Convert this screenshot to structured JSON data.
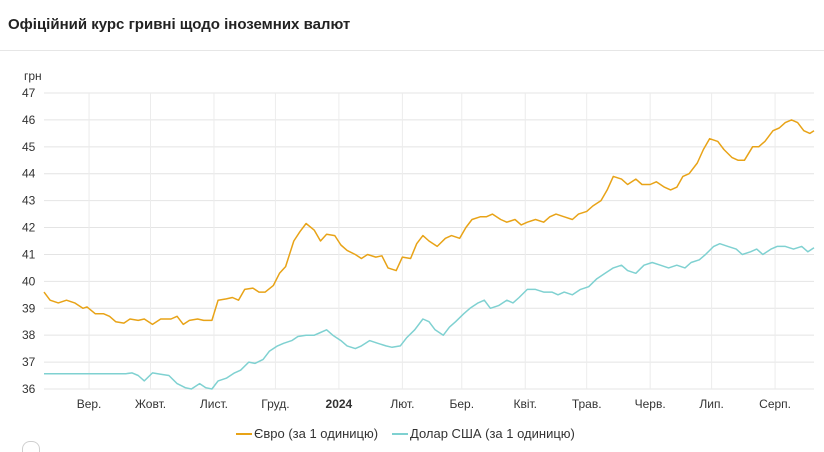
{
  "page": {
    "title": "Офіційний курс гривні щодо іноземних валют"
  },
  "chart_data": {
    "type": "line",
    "unit_label": "грн",
    "ylim": [
      36,
      47
    ],
    "y_ticks": [
      "36",
      "37",
      "38",
      "39",
      "40",
      "41",
      "42",
      "43",
      "44",
      "45",
      "46",
      "47"
    ],
    "x_range": [
      "2023-08-24",
      "2024-09-03"
    ],
    "x_ticks": [
      {
        "date": "2023-09-15",
        "label": "Вер.",
        "bold": false
      },
      {
        "date": "2023-10-15",
        "label": "Жовт.",
        "bold": false
      },
      {
        "date": "2023-11-15",
        "label": "Лист.",
        "bold": false
      },
      {
        "date": "2023-12-15",
        "label": "Груд.",
        "bold": false
      },
      {
        "date": "2024-01-15",
        "label": "2024",
        "bold": true
      },
      {
        "date": "2024-02-15",
        "label": "Лют.",
        "bold": false
      },
      {
        "date": "2024-03-15",
        "label": "Бер.",
        "bold": false
      },
      {
        "date": "2024-04-15",
        "label": "Квіт.",
        "bold": false
      },
      {
        "date": "2024-05-15",
        "label": "Трав.",
        "bold": false
      },
      {
        "date": "2024-06-15",
        "label": "Черв.",
        "bold": false
      },
      {
        "date": "2024-07-15",
        "label": "Лип.",
        "bold": false
      },
      {
        "date": "2024-08-15",
        "label": "Серп.",
        "bold": false
      }
    ],
    "grid": true,
    "legend_position": "bottom-center",
    "series": [
      {
        "name": "Євро (за 1 одиницю)",
        "color": "#e8a317",
        "points": [
          [
            "2023-08-24",
            39.6
          ],
          [
            "2023-08-27",
            39.3
          ],
          [
            "2023-08-31",
            39.2
          ],
          [
            "2023-09-04",
            39.3
          ],
          [
            "2023-09-08",
            39.2
          ],
          [
            "2023-09-12",
            39.0
          ],
          [
            "2023-09-14",
            39.05
          ],
          [
            "2023-09-18",
            38.8
          ],
          [
            "2023-09-22",
            38.8
          ],
          [
            "2023-09-25",
            38.7
          ],
          [
            "2023-09-28",
            38.5
          ],
          [
            "2023-10-02",
            38.45
          ],
          [
            "2023-10-05",
            38.6
          ],
          [
            "2023-10-09",
            38.55
          ],
          [
            "2023-10-12",
            38.6
          ],
          [
            "2023-10-16",
            38.4
          ],
          [
            "2023-10-20",
            38.6
          ],
          [
            "2023-10-25",
            38.6
          ],
          [
            "2023-10-28",
            38.7
          ],
          [
            "2023-10-31",
            38.4
          ],
          [
            "2023-11-03",
            38.55
          ],
          [
            "2023-11-07",
            38.6
          ],
          [
            "2023-11-10",
            38.55
          ],
          [
            "2023-11-14",
            38.55
          ],
          [
            "2023-11-17",
            39.3
          ],
          [
            "2023-11-21",
            39.35
          ],
          [
            "2023-11-24",
            39.4
          ],
          [
            "2023-11-27",
            39.3
          ],
          [
            "2023-11-30",
            39.7
          ],
          [
            "2023-12-04",
            39.75
          ],
          [
            "2023-12-07",
            39.6
          ],
          [
            "2023-12-10",
            39.6
          ],
          [
            "2023-12-14",
            39.85
          ],
          [
            "2023-12-17",
            40.3
          ],
          [
            "2023-12-20",
            40.55
          ],
          [
            "2023-12-24",
            41.5
          ],
          [
            "2023-12-27",
            41.85
          ],
          [
            "2023-12-30",
            42.15
          ],
          [
            "2024-01-03",
            41.9
          ],
          [
            "2024-01-06",
            41.5
          ],
          [
            "2024-01-09",
            41.75
          ],
          [
            "2024-01-13",
            41.7
          ],
          [
            "2024-01-16",
            41.35
          ],
          [
            "2024-01-19",
            41.15
          ],
          [
            "2024-01-23",
            41.0
          ],
          [
            "2024-01-26",
            40.85
          ],
          [
            "2024-01-29",
            41.0
          ],
          [
            "2024-02-02",
            40.9
          ],
          [
            "2024-02-05",
            40.95
          ],
          [
            "2024-02-08",
            40.5
          ],
          [
            "2024-02-12",
            40.4
          ],
          [
            "2024-02-15",
            40.9
          ],
          [
            "2024-02-19",
            40.85
          ],
          [
            "2024-02-22",
            41.4
          ],
          [
            "2024-02-25",
            41.7
          ],
          [
            "2024-02-28",
            41.5
          ],
          [
            "2024-03-03",
            41.3
          ],
          [
            "2024-03-07",
            41.6
          ],
          [
            "2024-03-10",
            41.7
          ],
          [
            "2024-03-14",
            41.6
          ],
          [
            "2024-03-17",
            42.0
          ],
          [
            "2024-03-20",
            42.3
          ],
          [
            "2024-03-24",
            42.4
          ],
          [
            "2024-03-27",
            42.4
          ],
          [
            "2024-03-30",
            42.5
          ],
          [
            "2024-04-03",
            42.3
          ],
          [
            "2024-04-06",
            42.2
          ],
          [
            "2024-04-10",
            42.3
          ],
          [
            "2024-04-13",
            42.1
          ],
          [
            "2024-04-16",
            42.2
          ],
          [
            "2024-04-20",
            42.3
          ],
          [
            "2024-04-24",
            42.2
          ],
          [
            "2024-04-27",
            42.4
          ],
          [
            "2024-04-30",
            42.5
          ],
          [
            "2024-05-04",
            42.4
          ],
          [
            "2024-05-08",
            42.3
          ],
          [
            "2024-05-11",
            42.5
          ],
          [
            "2024-05-15",
            42.6
          ],
          [
            "2024-05-18",
            42.8
          ],
          [
            "2024-05-22",
            43.0
          ],
          [
            "2024-05-25",
            43.4
          ],
          [
            "2024-05-28",
            43.9
          ],
          [
            "2024-06-01",
            43.8
          ],
          [
            "2024-06-04",
            43.6
          ],
          [
            "2024-06-08",
            43.8
          ],
          [
            "2024-06-11",
            43.6
          ],
          [
            "2024-06-15",
            43.6
          ],
          [
            "2024-06-18",
            43.7
          ],
          [
            "2024-06-22",
            43.5
          ],
          [
            "2024-06-25",
            43.4
          ],
          [
            "2024-06-28",
            43.5
          ],
          [
            "2024-07-01",
            43.9
          ],
          [
            "2024-07-04",
            44.0
          ],
          [
            "2024-07-08",
            44.4
          ],
          [
            "2024-07-11",
            44.9
          ],
          [
            "2024-07-14",
            45.3
          ],
          [
            "2024-07-18",
            45.2
          ],
          [
            "2024-07-21",
            44.9
          ],
          [
            "2024-07-25",
            44.6
          ],
          [
            "2024-07-28",
            44.5
          ],
          [
            "2024-07-31",
            44.5
          ],
          [
            "2024-08-04",
            45.0
          ],
          [
            "2024-08-07",
            45.0
          ],
          [
            "2024-08-10",
            45.2
          ],
          [
            "2024-08-14",
            45.6
          ],
          [
            "2024-08-17",
            45.7
          ],
          [
            "2024-08-20",
            45.9
          ],
          [
            "2024-08-23",
            46.0
          ],
          [
            "2024-08-26",
            45.9
          ],
          [
            "2024-08-29",
            45.6
          ],
          [
            "2024-09-01",
            45.5
          ],
          [
            "2024-09-03",
            45.6
          ]
        ]
      },
      {
        "name": "Долар США (за 1 одиницю)",
        "color": "#7fd1d1",
        "points": [
          [
            "2023-08-24",
            36.57
          ],
          [
            "2023-09-10",
            36.57
          ],
          [
            "2023-09-25",
            36.57
          ],
          [
            "2023-10-03",
            36.57
          ],
          [
            "2023-10-06",
            36.6
          ],
          [
            "2023-10-09",
            36.5
          ],
          [
            "2023-10-12",
            36.3
          ],
          [
            "2023-10-16",
            36.6
          ],
          [
            "2023-10-20",
            36.55
          ],
          [
            "2023-10-24",
            36.5
          ],
          [
            "2023-10-28",
            36.2
          ],
          [
            "2023-11-01",
            36.05
          ],
          [
            "2023-11-04",
            36.0
          ],
          [
            "2023-11-08",
            36.2
          ],
          [
            "2023-11-11",
            36.05
          ],
          [
            "2023-11-14",
            36.0
          ],
          [
            "2023-11-17",
            36.3
          ],
          [
            "2023-11-21",
            36.4
          ],
          [
            "2023-11-25",
            36.6
          ],
          [
            "2023-11-28",
            36.7
          ],
          [
            "2023-12-02",
            37.0
          ],
          [
            "2023-12-05",
            36.95
          ],
          [
            "2023-12-09",
            37.1
          ],
          [
            "2023-12-12",
            37.4
          ],
          [
            "2023-12-16",
            37.6
          ],
          [
            "2023-12-19",
            37.7
          ],
          [
            "2023-12-23",
            37.8
          ],
          [
            "2023-12-26",
            37.95
          ],
          [
            "2023-12-30",
            38.0
          ],
          [
            "2024-01-03",
            38.0
          ],
          [
            "2024-01-06",
            38.1
          ],
          [
            "2024-01-09",
            38.2
          ],
          [
            "2024-01-12",
            38.0
          ],
          [
            "2024-01-16",
            37.8
          ],
          [
            "2024-01-19",
            37.6
          ],
          [
            "2024-01-23",
            37.5
          ],
          [
            "2024-01-26",
            37.6
          ],
          [
            "2024-01-30",
            37.8
          ],
          [
            "2024-02-03",
            37.7
          ],
          [
            "2024-02-07",
            37.6
          ],
          [
            "2024-02-10",
            37.55
          ],
          [
            "2024-02-14",
            37.6
          ],
          [
            "2024-02-17",
            37.9
          ],
          [
            "2024-02-21",
            38.2
          ],
          [
            "2024-02-25",
            38.6
          ],
          [
            "2024-02-28",
            38.5
          ],
          [
            "2024-03-02",
            38.2
          ],
          [
            "2024-03-06",
            38.0
          ],
          [
            "2024-03-09",
            38.3
          ],
          [
            "2024-03-12",
            38.5
          ],
          [
            "2024-03-16",
            38.8
          ],
          [
            "2024-03-19",
            39.0
          ],
          [
            "2024-03-23",
            39.2
          ],
          [
            "2024-03-26",
            39.3
          ],
          [
            "2024-03-29",
            39.0
          ],
          [
            "2024-04-02",
            39.1
          ],
          [
            "2024-04-06",
            39.3
          ],
          [
            "2024-04-09",
            39.2
          ],
          [
            "2024-04-12",
            39.4
          ],
          [
            "2024-04-16",
            39.7
          ],
          [
            "2024-04-20",
            39.7
          ],
          [
            "2024-04-24",
            39.6
          ],
          [
            "2024-04-28",
            39.6
          ],
          [
            "2024-05-01",
            39.5
          ],
          [
            "2024-05-04",
            39.6
          ],
          [
            "2024-05-08",
            39.5
          ],
          [
            "2024-05-12",
            39.7
          ],
          [
            "2024-05-16",
            39.8
          ],
          [
            "2024-05-20",
            40.1
          ],
          [
            "2024-05-24",
            40.3
          ],
          [
            "2024-05-28",
            40.5
          ],
          [
            "2024-06-01",
            40.6
          ],
          [
            "2024-06-04",
            40.4
          ],
          [
            "2024-06-08",
            40.3
          ],
          [
            "2024-06-12",
            40.6
          ],
          [
            "2024-06-16",
            40.7
          ],
          [
            "2024-06-20",
            40.6
          ],
          [
            "2024-06-24",
            40.5
          ],
          [
            "2024-06-28",
            40.6
          ],
          [
            "2024-07-02",
            40.5
          ],
          [
            "2024-07-05",
            40.7
          ],
          [
            "2024-07-09",
            40.8
          ],
          [
            "2024-07-12",
            41.0
          ],
          [
            "2024-07-16",
            41.3
          ],
          [
            "2024-07-19",
            41.4
          ],
          [
            "2024-07-23",
            41.3
          ],
          [
            "2024-07-27",
            41.2
          ],
          [
            "2024-07-30",
            41.0
          ],
          [
            "2024-08-03",
            41.1
          ],
          [
            "2024-08-06",
            41.2
          ],
          [
            "2024-08-09",
            41.0
          ],
          [
            "2024-08-13",
            41.2
          ],
          [
            "2024-08-16",
            41.3
          ],
          [
            "2024-08-20",
            41.3
          ],
          [
            "2024-08-24",
            41.2
          ],
          [
            "2024-08-28",
            41.3
          ],
          [
            "2024-08-31",
            41.1
          ],
          [
            "2024-09-03",
            41.25
          ]
        ]
      }
    ]
  }
}
